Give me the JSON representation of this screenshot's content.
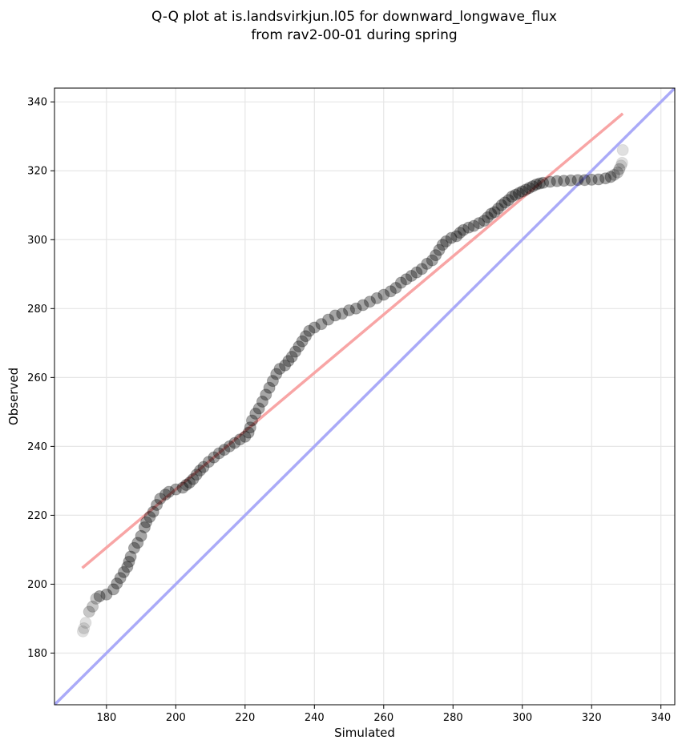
{
  "chart_data": {
    "type": "scatter",
    "title": "Q-Q plot at is.landsvirkjun.l05 for downward_longwave_flux",
    "subtitle": "from rav2-00-01 during spring",
    "xlabel": "Simulated",
    "ylabel": "Observed",
    "xlim": [
      165,
      344
    ],
    "ylim": [
      165,
      344
    ],
    "xticks": [
      "180",
      "200",
      "220",
      "240",
      "260",
      "280",
      "300",
      "320",
      "340"
    ],
    "yticks": [
      "180",
      "200",
      "220",
      "240",
      "260",
      "280",
      "300",
      "320",
      "340"
    ],
    "grid": true,
    "colors": {
      "points": "#000000",
      "fit_line": "#f8a5a5",
      "identity_line": "#aaaaf8",
      "grid": "#e6e6e6"
    },
    "quantiles": [
      [
        173.2,
        186.3
      ],
      [
        173.5,
        187.2
      ],
      [
        174.0,
        188.8
      ],
      [
        175.0,
        192.0
      ],
      [
        176.0,
        193.5
      ],
      [
        177.0,
        195.8
      ],
      [
        178.0,
        196.5
      ],
      [
        180.0,
        197.0
      ],
      [
        182.0,
        198.5
      ],
      [
        183.0,
        200.2
      ],
      [
        184.0,
        201.8
      ],
      [
        185.0,
        203.5
      ],
      [
        186.0,
        205.0
      ],
      [
        186.5,
        206.5
      ],
      [
        187.0,
        208.0
      ],
      [
        188.0,
        210.5
      ],
      [
        189.0,
        212.0
      ],
      [
        190.0,
        214.0
      ],
      [
        191.0,
        216.5
      ],
      [
        191.5,
        218.0
      ],
      [
        192.5,
        219.5
      ],
      [
        193.5,
        221.0
      ],
      [
        194.5,
        223.0
      ],
      [
        195.5,
        224.8
      ],
      [
        197.0,
        226.0
      ],
      [
        198.0,
        226.8
      ],
      [
        200.0,
        227.5
      ],
      [
        202.0,
        228.0
      ],
      [
        203.0,
        228.8
      ],
      [
        204.0,
        229.5
      ],
      [
        205.0,
        230.5
      ],
      [
        206.0,
        231.8
      ],
      [
        207.0,
        233.0
      ],
      [
        208.0,
        234.0
      ],
      [
        209.5,
        235.5
      ],
      [
        211.0,
        236.8
      ],
      [
        212.5,
        238.0
      ],
      [
        214.0,
        239.0
      ],
      [
        215.5,
        240.0
      ],
      [
        217.0,
        241.0
      ],
      [
        218.5,
        242.0
      ],
      [
        220.0,
        242.8
      ],
      [
        221.0,
        244.0
      ],
      [
        221.5,
        245.5
      ],
      [
        222.0,
        247.5
      ],
      [
        223.0,
        249.5
      ],
      [
        224.0,
        251.0
      ],
      [
        225.0,
        253.0
      ],
      [
        226.0,
        255.0
      ],
      [
        227.0,
        257.0
      ],
      [
        228.0,
        259.0
      ],
      [
        229.0,
        261.0
      ],
      [
        230.0,
        262.5
      ],
      [
        231.5,
        263.5
      ],
      [
        232.5,
        264.8
      ],
      [
        233.5,
        266.0
      ],
      [
        234.5,
        267.5
      ],
      [
        235.5,
        269.0
      ],
      [
        236.5,
        270.5
      ],
      [
        237.5,
        272.0
      ],
      [
        238.5,
        273.5
      ],
      [
        240.0,
        274.5
      ],
      [
        242.0,
        275.5
      ],
      [
        244.0,
        276.8
      ],
      [
        246.0,
        278.0
      ],
      [
        248.0,
        278.5
      ],
      [
        250.0,
        279.5
      ],
      [
        252.0,
        280.0
      ],
      [
        254.0,
        281.0
      ],
      [
        256.0,
        282.0
      ],
      [
        258.0,
        283.0
      ],
      [
        260.0,
        284.0
      ],
      [
        262.0,
        285.0
      ],
      [
        263.5,
        286.0
      ],
      [
        265.0,
        287.5
      ],
      [
        266.5,
        288.5
      ],
      [
        268.0,
        289.5
      ],
      [
        269.5,
        290.5
      ],
      [
        271.0,
        291.5
      ],
      [
        272.5,
        293.0
      ],
      [
        274.0,
        294.0
      ],
      [
        275.0,
        295.5
      ],
      [
        276.0,
        297.0
      ],
      [
        277.0,
        298.5
      ],
      [
        278.0,
        299.5
      ],
      [
        279.5,
        300.5
      ],
      [
        281.0,
        301.0
      ],
      [
        282.0,
        302.0
      ],
      [
        283.0,
        302.8
      ],
      [
        284.5,
        303.5
      ],
      [
        286.0,
        304.0
      ],
      [
        287.5,
        304.8
      ],
      [
        289.0,
        305.5
      ],
      [
        290.0,
        306.5
      ],
      [
        291.0,
        307.5
      ],
      [
        292.0,
        308.0
      ],
      [
        293.0,
        309.0
      ],
      [
        294.0,
        310.0
      ],
      [
        295.0,
        310.8
      ],
      [
        296.0,
        311.5
      ],
      [
        297.0,
        312.5
      ],
      [
        298.0,
        313.0
      ],
      [
        299.0,
        313.5
      ],
      [
        300.0,
        314.0
      ],
      [
        301.0,
        314.5
      ],
      [
        302.0,
        315.0
      ],
      [
        303.0,
        315.5
      ],
      [
        304.0,
        316.0
      ],
      [
        305.0,
        316.3
      ],
      [
        306.0,
        316.5
      ],
      [
        308.0,
        316.8
      ],
      [
        310.0,
        317.0
      ],
      [
        312.0,
        317.1
      ],
      [
        314.0,
        317.2
      ],
      [
        316.0,
        317.3
      ],
      [
        318.0,
        317.3
      ],
      [
        320.0,
        317.4
      ],
      [
        322.0,
        317.5
      ],
      [
        324.0,
        317.8
      ],
      [
        325.5,
        318.2
      ],
      [
        326.5,
        318.8
      ],
      [
        327.5,
        319.5
      ],
      [
        328.0,
        320.5
      ],
      [
        328.5,
        321.5
      ],
      [
        328.8,
        322.3
      ],
      [
        329.0,
        326.0
      ]
    ],
    "fit_line": {
      "from": [
        173.0,
        204.7
      ],
      "to": [
        329.0,
        336.6
      ]
    },
    "identity_line": {
      "from": [
        165,
        165
      ],
      "to": [
        344,
        344
      ]
    }
  }
}
